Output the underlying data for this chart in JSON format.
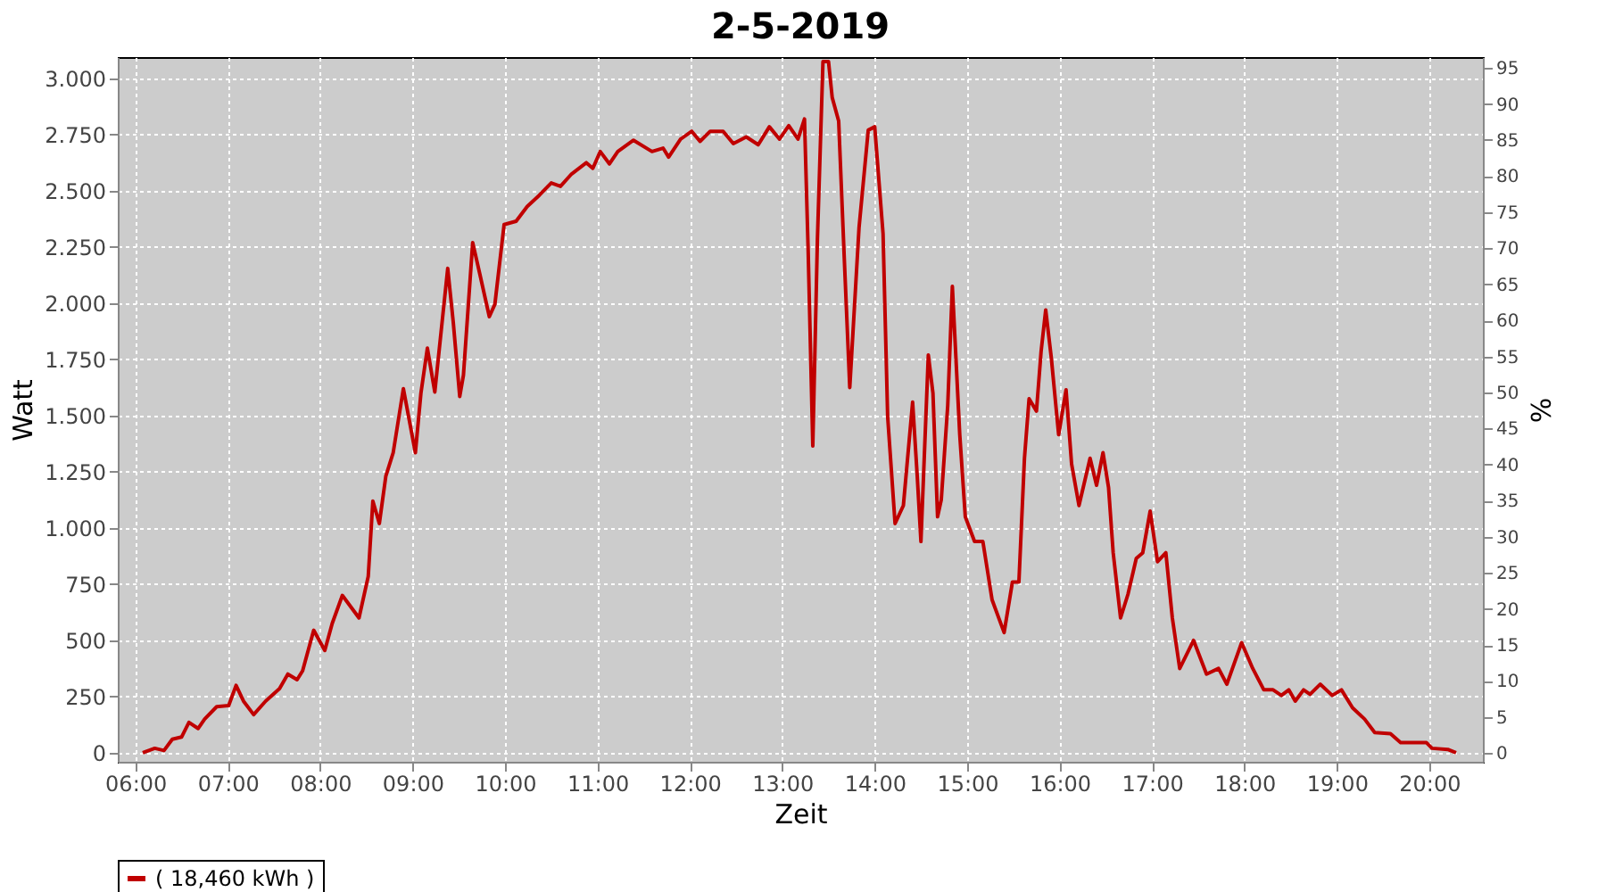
{
  "chart_data": {
    "type": "line",
    "title": "2-5-2019",
    "xlabel": "Zeit",
    "ylabel": "Watt",
    "y2label": "%",
    "x": [
      6.08,
      6.21,
      6.31,
      6.4,
      6.5,
      6.58,
      6.68,
      6.75,
      6.88,
      7.01,
      7.09,
      7.17,
      7.28,
      7.41,
      7.56,
      7.65,
      7.75,
      7.81,
      7.93,
      8.05,
      8.13,
      8.24,
      8.42,
      8.52,
      8.57,
      8.64,
      8.71,
      8.79,
      8.9,
      9.03,
      9.09,
      9.16,
      9.24,
      9.38,
      9.44,
      9.51,
      9.55,
      9.65,
      9.73,
      9.83,
      9.89,
      9.99,
      10.12,
      10.24,
      10.37,
      10.5,
      10.6,
      10.72,
      10.88,
      10.95,
      11.03,
      11.13,
      11.22,
      11.39,
      11.59,
      11.71,
      11.77,
      11.9,
      12.02,
      12.11,
      12.22,
      12.36,
      12.47,
      12.61,
      12.74,
      12.86,
      12.97,
      13.07,
      13.17,
      13.24,
      13.28,
      13.33,
      13.38,
      13.44,
      13.5,
      13.54,
      13.61,
      13.67,
      13.73,
      13.83,
      13.93,
      14.0,
      14.09,
      14.14,
      14.22,
      14.31,
      14.41,
      14.46,
      14.5,
      14.58,
      14.63,
      14.68,
      14.72,
      14.79,
      14.84,
      14.92,
      14.98,
      15.08,
      15.17,
      15.27,
      15.4,
      15.49,
      15.56,
      15.62,
      15.67,
      15.75,
      15.8,
      15.85,
      15.91,
      15.99,
      16.07,
      16.13,
      16.21,
      16.33,
      16.4,
      16.47,
      16.53,
      16.58,
      16.66,
      16.74,
      16.83,
      16.9,
      16.98,
      17.06,
      17.15,
      17.22,
      17.3,
      17.45,
      17.59,
      17.72,
      17.81,
      17.97,
      18.09,
      18.21,
      18.31,
      18.4,
      18.48,
      18.55,
      18.64,
      18.71,
      18.82,
      18.95,
      19.05,
      19.17,
      19.3,
      19.41,
      19.58,
      19.69,
      19.97,
      20.03,
      20.2,
      20.29
    ],
    "series": [
      {
        "name": "( 18,460 kWh )",
        "color": "#c00000",
        "values": [
          0,
          20,
          10,
          60,
          70,
          135,
          108,
          150,
          205,
          210,
          300,
          230,
          170,
          230,
          285,
          350,
          325,
          365,
          545,
          455,
          575,
          700,
          600,
          785,
          1120,
          1020,
          1230,
          1335,
          1620,
          1335,
          1600,
          1800,
          1605,
          2155,
          1915,
          1585,
          1680,
          2270,
          2125,
          1940,
          1995,
          2350,
          2365,
          2430,
          2480,
          2535,
          2520,
          2575,
          2625,
          2600,
          2675,
          2620,
          2675,
          2725,
          2675,
          2690,
          2650,
          2730,
          2765,
          2720,
          2765,
          2765,
          2710,
          2740,
          2705,
          2785,
          2730,
          2790,
          2730,
          2820,
          2230,
          1365,
          2285,
          3075,
          3075,
          2915,
          2810,
          2205,
          1625,
          2335,
          2770,
          2785,
          2310,
          1495,
          1020,
          1100,
          1560,
          1230,
          940,
          1770,
          1600,
          1050,
          1125,
          1545,
          2075,
          1415,
          1050,
          940,
          940,
          680,
          535,
          760,
          760,
          1310,
          1575,
          1520,
          1785,
          1970,
          1760,
          1415,
          1615,
          1285,
          1100,
          1310,
          1190,
          1335,
          1180,
          890,
          600,
          705,
          865,
          890,
          1075,
          850,
          890,
          600,
          375,
          500,
          350,
          375,
          305,
          490,
          375,
          280,
          280,
          255,
          280,
          230,
          280,
          260,
          305,
          255,
          280,
          200,
          150,
          90,
          85,
          45,
          45,
          20,
          15,
          0
        ]
      }
    ],
    "xlim": [
      5.81,
      20.58
    ],
    "xticks": [
      {
        "value": 6,
        "label": "06:00"
      },
      {
        "value": 7,
        "label": "07:00"
      },
      {
        "value": 8,
        "label": "08:00"
      },
      {
        "value": 9,
        "label": "09:00"
      },
      {
        "value": 10,
        "label": "10:00"
      },
      {
        "value": 11,
        "label": "11:00"
      },
      {
        "value": 12,
        "label": "12:00"
      },
      {
        "value": 13,
        "label": "13:00"
      },
      {
        "value": 14,
        "label": "14:00"
      },
      {
        "value": 15,
        "label": "15:00"
      },
      {
        "value": 16,
        "label": "16:00"
      },
      {
        "value": 17,
        "label": "17:00"
      },
      {
        "value": 18,
        "label": "18:00"
      },
      {
        "value": 19,
        "label": "19:00"
      },
      {
        "value": 20,
        "label": "20:00"
      }
    ],
    "ylim": [
      -40,
      3095
    ],
    "yticks": [
      0,
      250,
      500,
      750,
      {
        "value": 1000,
        "label": "1.000"
      },
      {
        "value": 1250,
        "label": "1.250"
      },
      {
        "value": 1500,
        "label": "1.500"
      },
      {
        "value": 1750,
        "label": "1.750"
      },
      {
        "value": 2000,
        "label": "2.000"
      },
      {
        "value": 2250,
        "label": "2.250"
      },
      {
        "value": 2500,
        "label": "2.500"
      },
      {
        "value": 2750,
        "label": "2.750"
      },
      {
        "value": 3000,
        "label": "3.000"
      }
    ],
    "y2lim": [
      -1.2,
      96.5
    ],
    "y2ticks": [
      0,
      5,
      10,
      15,
      20,
      25,
      30,
      35,
      40,
      45,
      50,
      55,
      60,
      65,
      70,
      75,
      80,
      85,
      90,
      95
    ],
    "grid": true,
    "legend": "bottom",
    "marker": "none",
    "line_style": "solid"
  }
}
